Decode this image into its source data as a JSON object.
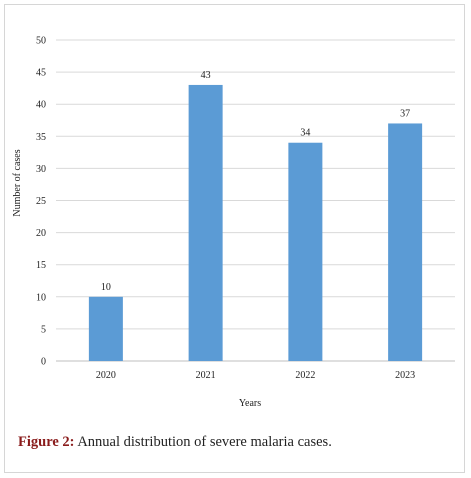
{
  "chart_data": {
    "type": "bar",
    "categories": [
      "2020",
      "2021",
      "2022",
      "2023"
    ],
    "values": [
      10,
      43,
      34,
      37
    ],
    "data_labels": [
      "10",
      "43",
      "34",
      "37"
    ],
    "xlabel": "Years",
    "ylabel": "Number of cases",
    "ylim": [
      0,
      50
    ],
    "yticks": [
      "0",
      "5",
      "10",
      "15",
      "20",
      "25",
      "30",
      "35",
      "40",
      "45",
      "50"
    ],
    "grid": true,
    "bar_color": "#5b9bd5",
    "grid_color": "#d9d9d9"
  },
  "caption": {
    "label": "Figure 2:",
    "text": " Annual distribution of severe malaria cases."
  }
}
